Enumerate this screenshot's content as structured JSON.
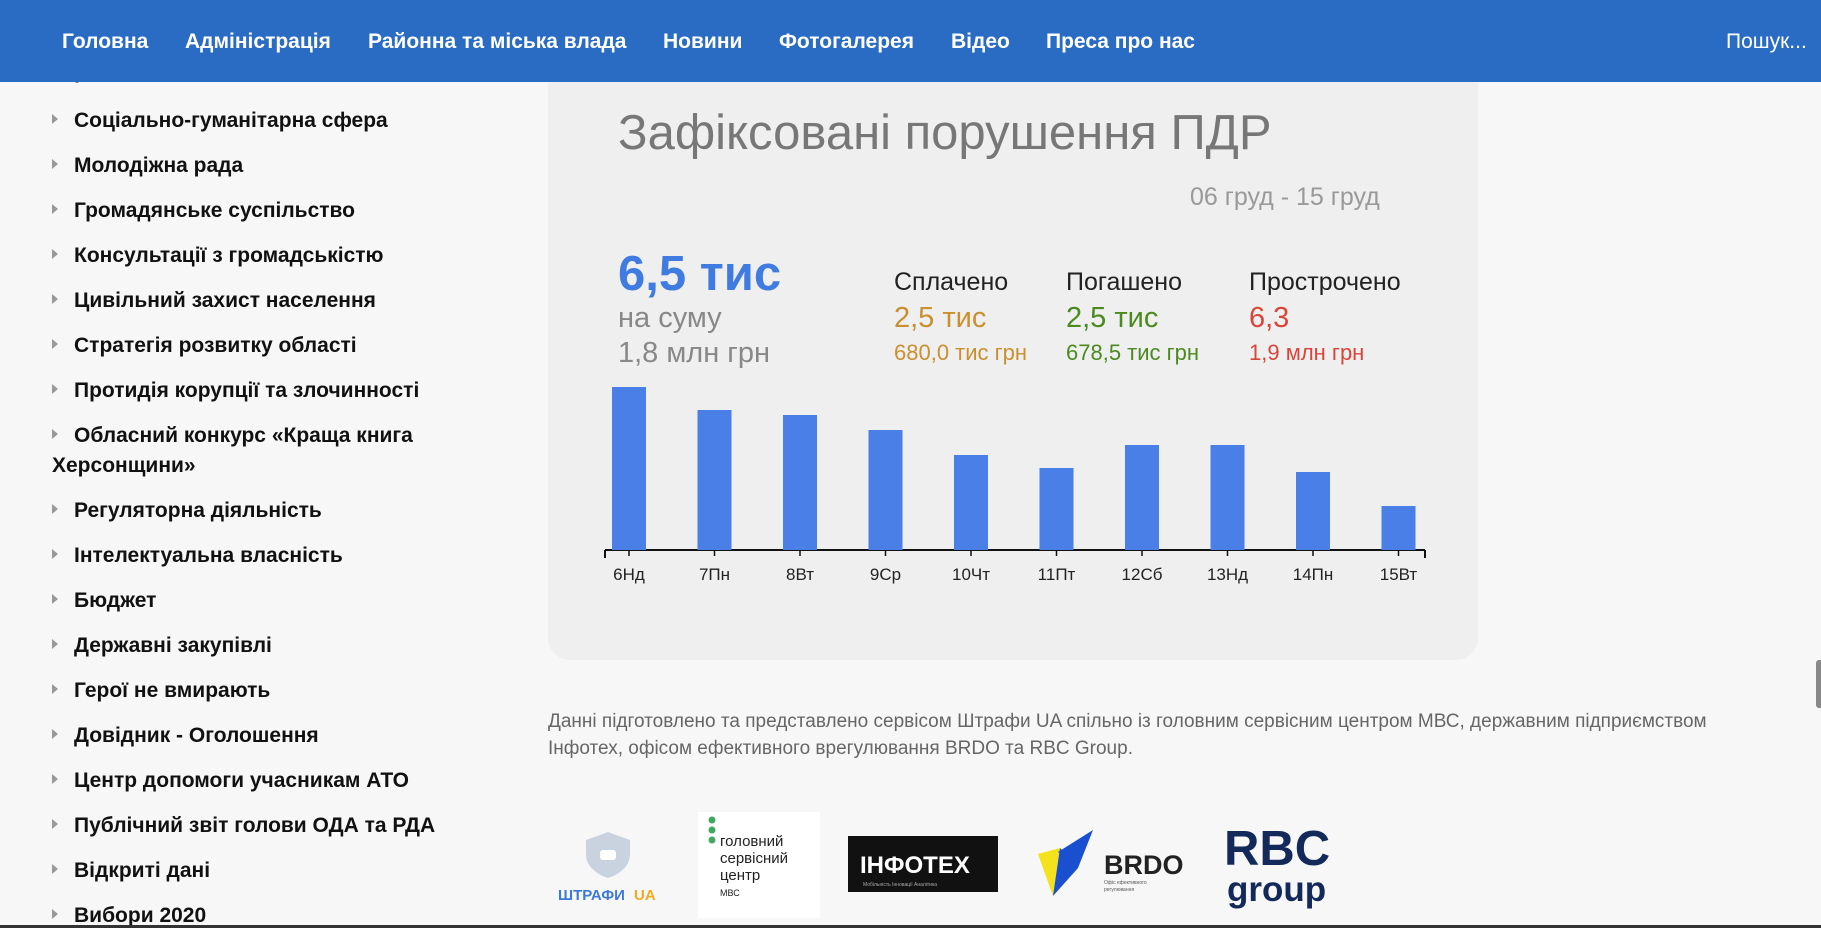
{
  "nav": {
    "items": [
      "Головна",
      "Адміністрація",
      "Районна та міська влада",
      "Новини",
      "Фотогалерея",
      "Відео",
      "Преса про нас"
    ],
    "search_placeholder": "Пошук..."
  },
  "sidebar": {
    "partial_item": "р",
    "items": [
      "Соціально-гуманітарна сфера",
      "Молодіжна рада",
      "Громадянське суспільство",
      "Консультації з громадськістю",
      "Цивільний захист населення",
      "Стратегія розвитку області",
      "Протидія корупції та злочинності",
      "Обласний конкурс «Краща книга Херсонщини»",
      "Регуляторна діяльність",
      "Інтелектуальна власність",
      "Бюджет",
      "Державні закупівлі",
      "Герої не вмирають",
      "Довідник - Оголошення",
      "Центр допомоги учасникам АТО",
      "Публічний звіт голови ОДА та РДА",
      "Відкриті дані",
      "Вибори 2020"
    ]
  },
  "widget": {
    "title": "Зафіксовані порушення ПДР",
    "date_range": "06 груд - 15 груд",
    "total_count": "6,5 тис",
    "total_sum_label": "на суму",
    "total_sum": "1,8 млн грн",
    "stats": [
      {
        "label": "Сплачено",
        "count": "2,5 тис",
        "amount": "680,0 тис грн",
        "color": "#c8902f"
      },
      {
        "label": "Погашено",
        "count": "2,5 тис",
        "amount": "678,5 тис грн",
        "color": "#4b8a1e"
      },
      {
        "label": "Прострочено",
        "count": "6,3",
        "amount": "1,9 млн грн",
        "color": "#d9453a"
      }
    ]
  },
  "chart_data": {
    "type": "bar",
    "categories": [
      "6Нд",
      "7Пн",
      "8Вт",
      "9Ср",
      "10Чт",
      "11Пт",
      "12Сб",
      "13Нд",
      "14Пн",
      "15Вт"
    ],
    "values": [
      163,
      140,
      135,
      120,
      95,
      82,
      105,
      105,
      78,
      44
    ],
    "bar_color": "#4a7fe8",
    "ylim": [
      0,
      170
    ],
    "grid": false
  },
  "footer": {
    "note_line1": "Данні підготовлено та представлено сервісом Штрафи UA спільно із головним сервісним центром МВС, державним підприємством",
    "note_line2": "Інфотех, офісом ефективного врегулювання BRDO та RBC Group.",
    "logos": {
      "shtrafy": {
        "text1": "ШТРАФИ",
        "text2": "UA"
      },
      "hsc": {
        "line1": "головний",
        "line2": "сервісний",
        "line3": "центр",
        "line4": "МВС"
      },
      "infotech": {
        "text": "ІНФОТЕХ",
        "sub": "Мобільність Інновації Аналітика"
      },
      "brdo": {
        "text": "BRDO",
        "sub1": "Офіс ефективного",
        "sub2": "регулювання"
      },
      "rbc": {
        "line1": "RBC",
        "line2": "group"
      }
    }
  }
}
